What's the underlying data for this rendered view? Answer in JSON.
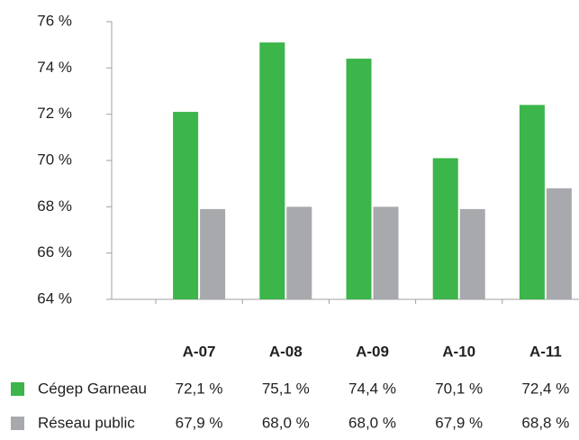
{
  "chart_data": {
    "type": "bar",
    "categories": [
      "A-07",
      "A-08",
      "A-09",
      "A-10",
      "A-11"
    ],
    "series": [
      {
        "name": "Cégep Garneau",
        "color": "#3cb54a",
        "values": [
          72.1,
          75.1,
          74.4,
          70.1,
          72.4
        ],
        "value_labels": [
          "72,1 %",
          "75,1 %",
          "74,4 %",
          "70,1 %",
          "72,4 %"
        ]
      },
      {
        "name": "Réseau public",
        "color": "#a7a9ac",
        "values": [
          67.9,
          68.0,
          68.0,
          67.9,
          68.8
        ],
        "value_labels": [
          "67,9 %",
          "68,0 %",
          "68,0 %",
          "67,9 %",
          "68,8 %"
        ]
      }
    ],
    "ylim": [
      64,
      76
    ],
    "yticks": [
      {
        "value": 64,
        "label": "64 %"
      },
      {
        "value": 66,
        "label": "66 %"
      },
      {
        "value": 68,
        "label": "68 %"
      },
      {
        "value": 70,
        "label": "70 %"
      },
      {
        "value": 72,
        "label": "72 %"
      },
      {
        "value": 74,
        "label": "74 %"
      },
      {
        "value": 76,
        "label": "76 %"
      }
    ],
    "grid": false
  }
}
